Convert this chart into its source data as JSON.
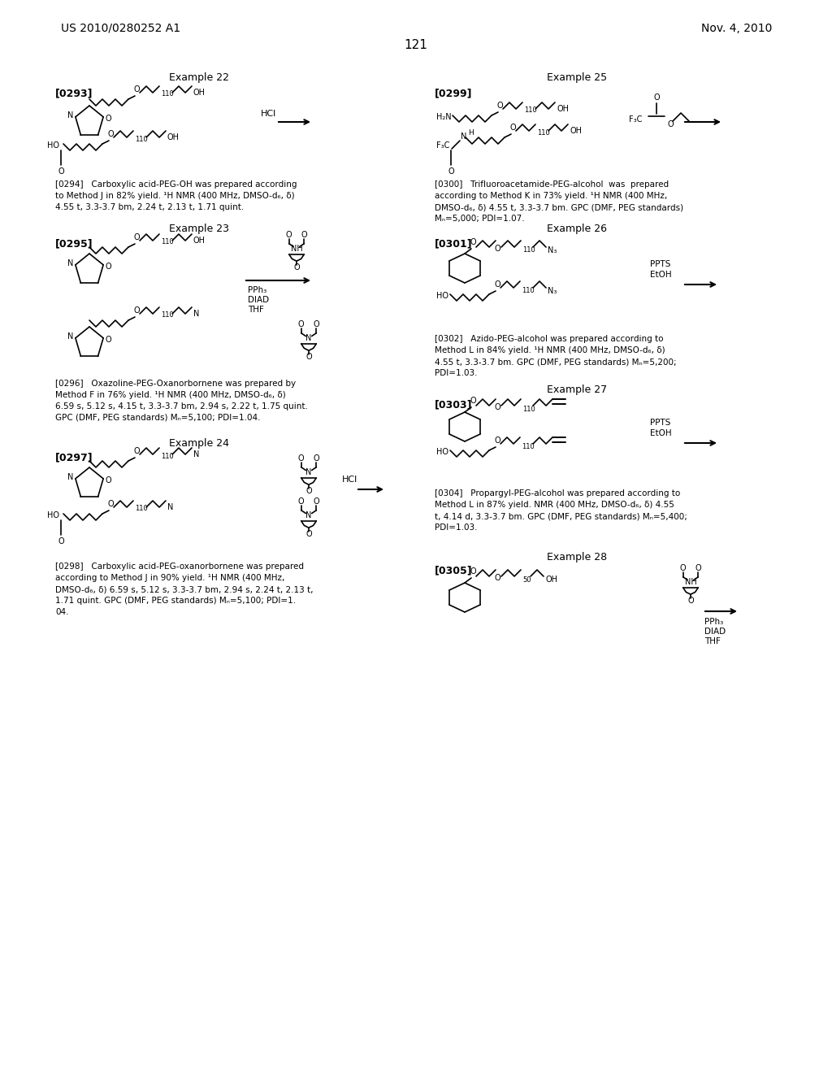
{
  "header_left": "US 2010/0280252 A1",
  "header_right": "Nov. 4, 2010",
  "page_number": "121",
  "background_color": "#ffffff",
  "text_color": "#000000"
}
